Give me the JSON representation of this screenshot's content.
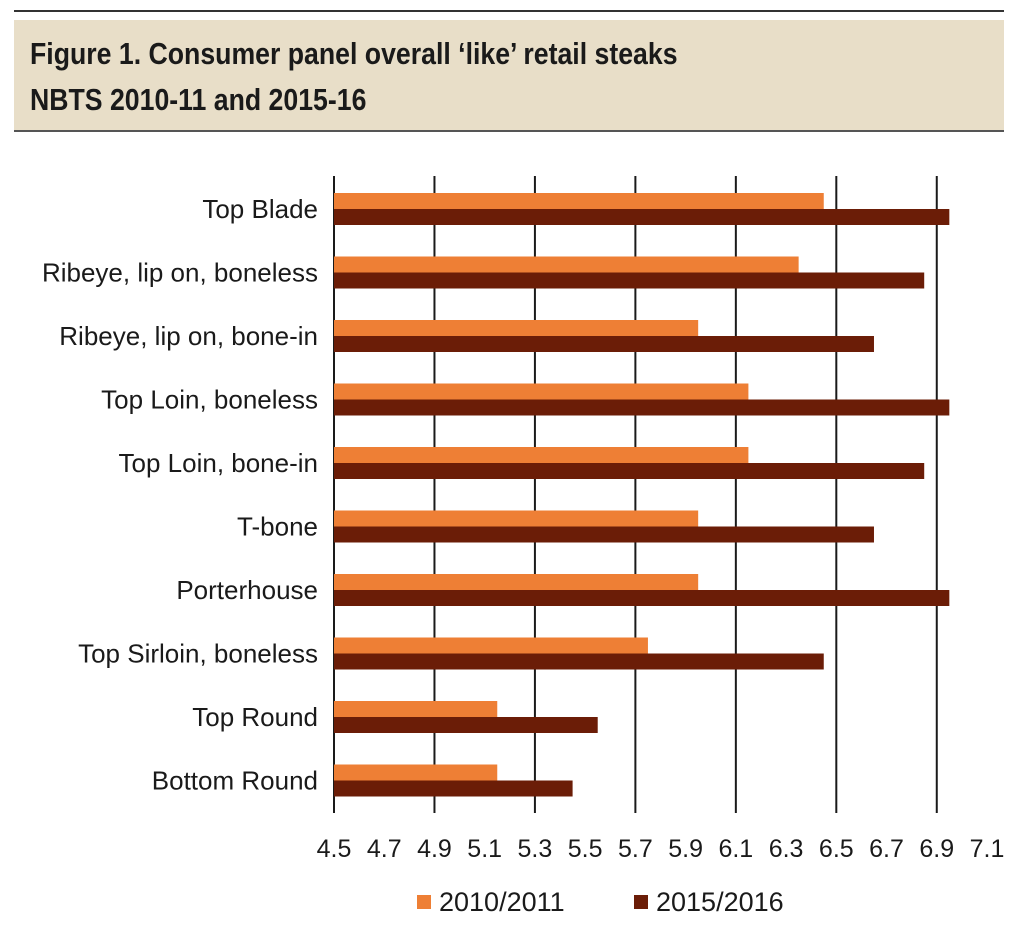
{
  "header": {
    "title_line1": "Figure 1. Consumer panel overall ‘like’ retail steaks",
    "title_line2": "NBTS 2010-11 and 2015-16",
    "background": "#e8dec8"
  },
  "chart_data": {
    "type": "bar",
    "orientation": "horizontal",
    "categories": [
      "Top Blade",
      "Ribeye, lip on, boneless",
      "Ribeye, lip on, bone-in",
      "Top Loin, boneless",
      "Top Loin, bone-in",
      "T-bone",
      "Porterhouse",
      "Top Sirloin, boneless",
      "Top Round",
      "Bottom Round"
    ],
    "series": [
      {
        "name": "2010/2011",
        "color": "#ee7f35",
        "values": [
          6.45,
          6.35,
          5.95,
          6.15,
          6.15,
          5.95,
          5.95,
          5.75,
          5.15,
          5.15
        ]
      },
      {
        "name": "2015/2016",
        "color": "#6b1d07",
        "values": [
          6.95,
          6.85,
          6.65,
          6.95,
          6.85,
          6.65,
          6.95,
          6.45,
          5.55,
          5.45
        ]
      }
    ],
    "xlim": [
      4.5,
      7.1
    ],
    "xticks": [
      "4.5",
      "4.7",
      "4.9",
      "5.1",
      "5.3",
      "5.5",
      "5.7",
      "5.9",
      "6.1",
      "6.3",
      "6.5",
      "6.7",
      "6.9",
      "7.1"
    ],
    "grid": "vertical",
    "legend_position": "bottom"
  }
}
